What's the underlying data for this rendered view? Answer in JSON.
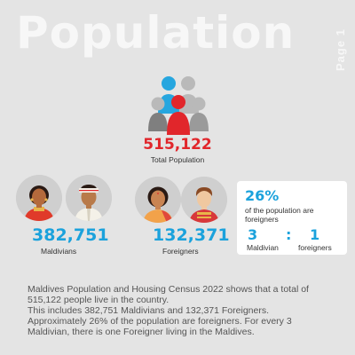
{
  "header": {
    "title": "Population",
    "page_tag": "Page 1"
  },
  "total": {
    "value": "515,122",
    "label": "Total Population"
  },
  "maldivians": {
    "value": "382,751",
    "label": "Maldivians"
  },
  "foreigners": {
    "value": "132,371",
    "label": "Foreigners"
  },
  "ratio_card": {
    "percent": "26%",
    "text": "of the population are foreigners",
    "left_num": "3",
    "colon": ":",
    "right_num": "1",
    "left_label": "Maldivian",
    "right_label": "foreigners"
  },
  "description": {
    "lines": [
      "Maldives Population and Housing Census 2022  shows that a total of",
      "515,122 people live in the country.",
      "This includes 382,751 Maldivians and 132,371 Foreigners.",
      "Approximately 26% of the population are foreigners. For every 3",
      "Maldivian, there is one Foreigner living in the Maldives."
    ]
  },
  "colors": {
    "accent_red": "#e1262b",
    "accent_blue": "#1ba2dc",
    "background": "#e4e4e4",
    "card": "#ffffff"
  },
  "icons": {
    "group": "people-group-icon",
    "avatars": [
      "maldivian-woman-avatar",
      "maldivian-man-avatar",
      "foreign-woman-avatar",
      "foreign-man-avatar"
    ]
  }
}
